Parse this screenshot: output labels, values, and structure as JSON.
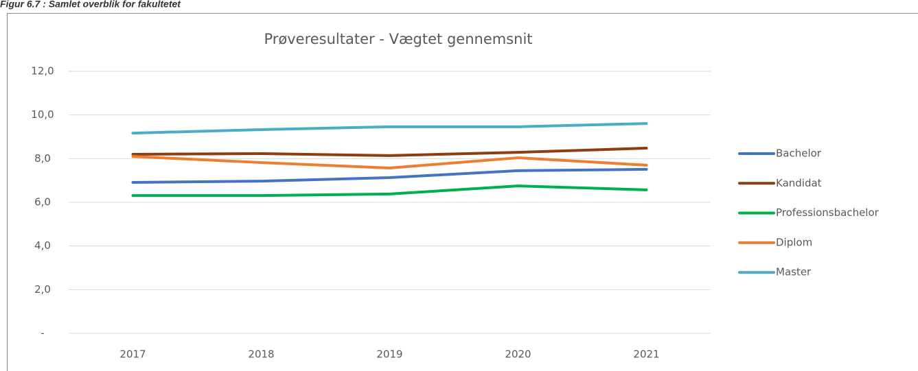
{
  "caption": "Figur 6.7 : Samlet overblik for fakultetet",
  "chart_data": {
    "type": "line",
    "title": "Prøveresultater - Vægtet gennemsnit",
    "categories": [
      "2017",
      "2018",
      "2019",
      "2020",
      "2021"
    ],
    "series": [
      {
        "name": "Bachelor",
        "color": "#4472c4",
        "values": [
          6.91,
          6.97,
          7.13,
          7.45,
          7.51
        ]
      },
      {
        "name": "Kandidat",
        "color": "#8a3e12",
        "values": [
          8.2,
          8.23,
          8.14,
          8.29,
          8.48
        ]
      },
      {
        "name": "Professionsbachelor",
        "color": "#00b050",
        "values": [
          6.31,
          6.31,
          6.38,
          6.75,
          6.57
        ]
      },
      {
        "name": "Diplom",
        "color": "#ed7d31",
        "values": [
          8.1,
          7.82,
          7.57,
          8.04,
          7.7
        ]
      },
      {
        "name": "Master",
        "color": "#4bacc6",
        "values": [
          9.17,
          9.33,
          9.46,
          9.46,
          9.61
        ]
      }
    ],
    "ylim": [
      0,
      12
    ],
    "yticks": [
      {
        "value": 0,
        "label": "-"
      },
      {
        "value": 2,
        "label": "2,0"
      },
      {
        "value": 4,
        "label": "4,0"
      },
      {
        "value": 6,
        "label": "6,0"
      },
      {
        "value": 8,
        "label": "8,0"
      },
      {
        "value": 10,
        "label": "10,0"
      },
      {
        "value": 12,
        "label": "12,0"
      }
    ],
    "grid": true,
    "legend": "right"
  }
}
